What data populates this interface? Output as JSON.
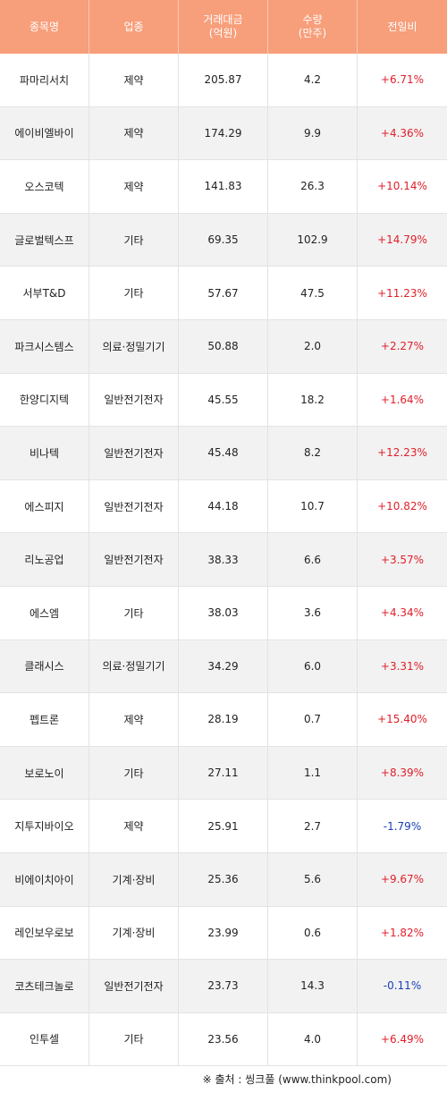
{
  "header": {
    "name": "종목명",
    "sector": "업종",
    "amount": "거래대금\n(억원)",
    "volume": "수량\n(만주)",
    "change": "전일비"
  },
  "rows": [
    {
      "name": "파마리서치",
      "sector": "제약",
      "amount": "205.87",
      "volume": "4.2",
      "change": "+6.71%"
    },
    {
      "name": "에이비엘바이",
      "sector": "제약",
      "amount": "174.29",
      "volume": "9.9",
      "change": "+4.36%"
    },
    {
      "name": "오스코텍",
      "sector": "제약",
      "amount": "141.83",
      "volume": "26.3",
      "change": "+10.14%"
    },
    {
      "name": "글로벌텍스프",
      "sector": "기타",
      "amount": "69.35",
      "volume": "102.9",
      "change": "+14.79%"
    },
    {
      "name": "서부T&D",
      "sector": "기타",
      "amount": "57.67",
      "volume": "47.5",
      "change": "+11.23%"
    },
    {
      "name": "파크시스템스",
      "sector": "의료·정밀기기",
      "amount": "50.88",
      "volume": "2.0",
      "change": "+2.27%"
    },
    {
      "name": "한양디지텍",
      "sector": "일반전기전자",
      "amount": "45.55",
      "volume": "18.2",
      "change": "+1.64%"
    },
    {
      "name": "비나텍",
      "sector": "일반전기전자",
      "amount": "45.48",
      "volume": "8.2",
      "change": "+12.23%"
    },
    {
      "name": "에스피지",
      "sector": "일반전기전자",
      "amount": "44.18",
      "volume": "10.7",
      "change": "+10.82%"
    },
    {
      "name": "리노공업",
      "sector": "일반전기전자",
      "amount": "38.33",
      "volume": "6.6",
      "change": "+3.57%"
    },
    {
      "name": "에스엠",
      "sector": "기타",
      "amount": "38.03",
      "volume": "3.6",
      "change": "+4.34%"
    },
    {
      "name": "클래시스",
      "sector": "의료·정밀기기",
      "amount": "34.29",
      "volume": "6.0",
      "change": "+3.31%"
    },
    {
      "name": "펩트론",
      "sector": "제약",
      "amount": "28.19",
      "volume": "0.7",
      "change": "+15.40%"
    },
    {
      "name": "보로노이",
      "sector": "기타",
      "amount": "27.11",
      "volume": "1.1",
      "change": "+8.39%"
    },
    {
      "name": "지투지바이오",
      "sector": "제약",
      "amount": "25.91",
      "volume": "2.7",
      "change": "-1.79%"
    },
    {
      "name": "비에이치아이",
      "sector": "기계·장비",
      "amount": "25.36",
      "volume": "5.6",
      "change": "+9.67%"
    },
    {
      "name": "레인보우로보",
      "sector": "기계·장비",
      "amount": "23.99",
      "volume": "0.6",
      "change": "+1.82%"
    },
    {
      "name": "코츠테크놀로",
      "sector": "일반전기전자",
      "amount": "23.73",
      "volume": "14.3",
      "change": "-0.11%"
    },
    {
      "name": "인투셀",
      "sector": "기타",
      "amount": "23.56",
      "volume": "4.0",
      "change": "+6.49%"
    }
  ],
  "source": "※ 출처 : 씽크풀 (www.thinkpool.com)",
  "colors": {
    "header_bg": "#f79e7a",
    "up": "#e0202a",
    "down": "#1a3fb8"
  }
}
